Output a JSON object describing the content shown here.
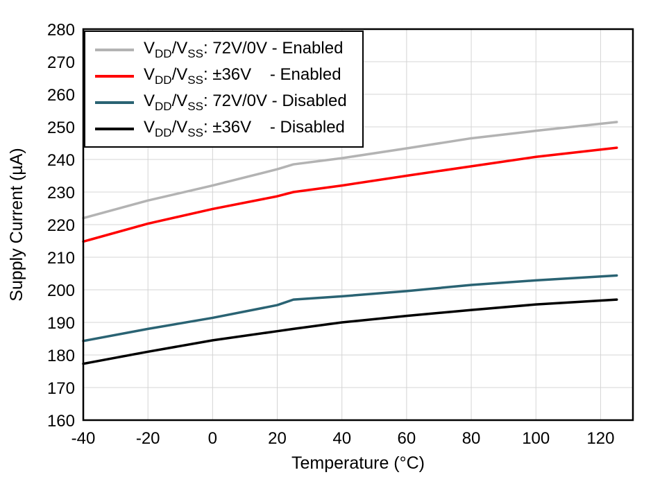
{
  "chart_data": {
    "type": "line",
    "title": "",
    "xlabel": "Temperature (°C)",
    "ylabel": "Supply Current (µA)",
    "xlim": [
      -40,
      130
    ],
    "ylim": [
      160,
      280
    ],
    "xticks": [
      -40,
      -20,
      0,
      20,
      40,
      60,
      80,
      100,
      120
    ],
    "yticks": [
      160,
      170,
      180,
      190,
      200,
      210,
      220,
      230,
      240,
      250,
      260,
      270,
      280
    ],
    "grid": true,
    "legend_position": "top-left",
    "x": [
      -40,
      -20,
      0,
      20,
      25,
      40,
      60,
      80,
      100,
      125
    ],
    "series": [
      {
        "name": "V_{DD}/V_{SS}: 72V/0V - Enabled",
        "color": "#b3b3b3",
        "values": [
          222.0,
          227.4,
          232.0,
          237.0,
          238.5,
          240.4,
          243.4,
          246.5,
          248.8,
          251.5
        ]
      },
      {
        "name": "V_{DD}/V_{SS}: ±36V    - Enabled",
        "color": "#ff0000",
        "values": [
          214.8,
          220.3,
          224.8,
          228.7,
          230.0,
          232.0,
          235.0,
          237.9,
          240.8,
          243.6
        ]
      },
      {
        "name": "V_{DD}/V_{SS}: 72V/0V - Disabled",
        "color": "#2a6373",
        "values": [
          184.3,
          188.0,
          191.4,
          195.3,
          197.0,
          198.0,
          199.6,
          201.5,
          202.9,
          204.4
        ]
      },
      {
        "name": "V_{DD}/V_{SS}: ±36V    - Disabled",
        "color": "#000000",
        "values": [
          177.3,
          181.0,
          184.5,
          187.3,
          188.0,
          190.0,
          192.0,
          193.8,
          195.5,
          197.0
        ]
      }
    ],
    "grid_color": "#d4d4d4",
    "axis_color": "#000000"
  }
}
